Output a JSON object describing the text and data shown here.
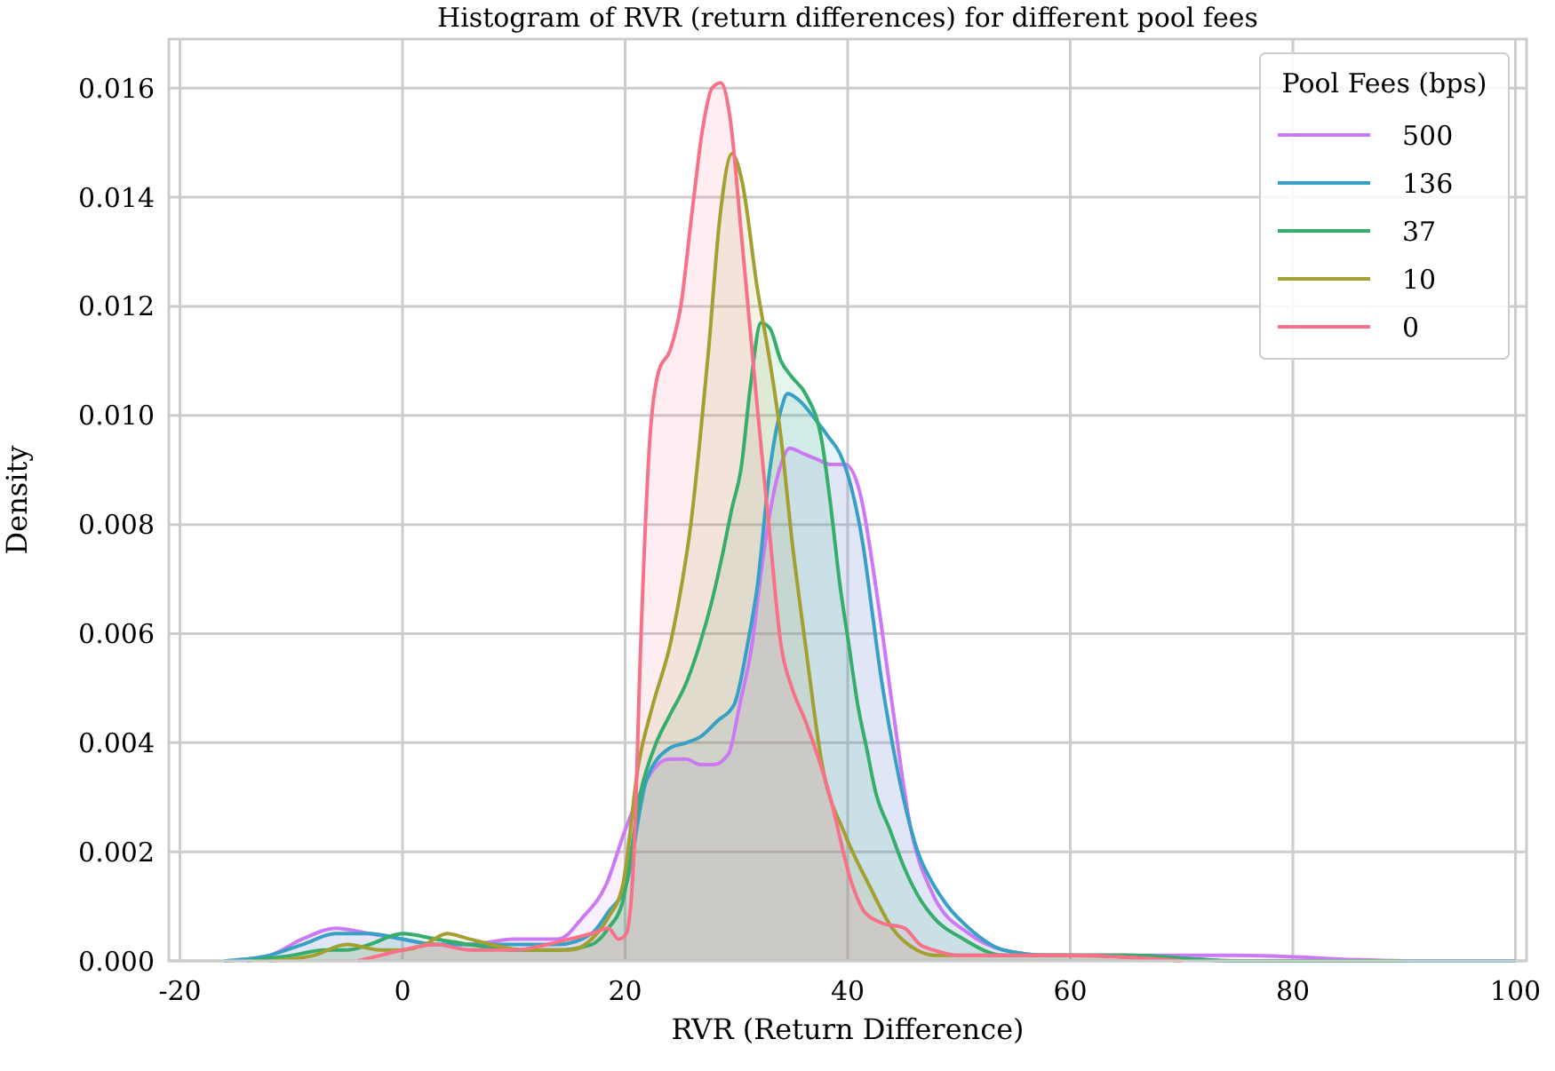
{
  "chart_data": {
    "type": "area",
    "title": "Histogram of RVR (return differences) for different pool fees",
    "xlabel": "RVR (Return Difference)",
    "ylabel": "Density",
    "legend_title": "Pool Fees (bps)",
    "legend": "top right",
    "grid": true,
    "xlim": [
      -21,
      101
    ],
    "ylim": [
      0,
      0.0169
    ],
    "xticks": [
      -20,
      0,
      20,
      40,
      60,
      80,
      100
    ],
    "yticks": [
      {
        "value": 0,
        "label": "0.000"
      },
      {
        "value": 0.002,
        "label": "0.002"
      },
      {
        "value": 0.004,
        "label": "0.004"
      },
      {
        "value": 0.006,
        "label": "0.006"
      },
      {
        "value": 0.008,
        "label": "0.008"
      },
      {
        "value": 0.01,
        "label": "0.010"
      },
      {
        "value": 0.012,
        "label": "0.012"
      },
      {
        "value": 0.014,
        "label": "0.014"
      },
      {
        "value": 0.016,
        "label": "0.016"
      }
    ],
    "series": [
      {
        "name": "500",
        "color": "#cc79f4",
        "x": [
          -16,
          -12,
          -9,
          -6,
          -3,
          0,
          3,
          6,
          10,
          14,
          16.2,
          18.3,
          20,
          21.4,
          22.5,
          24,
          25.5,
          26.7,
          28,
          29.3,
          30.3,
          31.4,
          32.2,
          33,
          34,
          34.8,
          36,
          37.2,
          38.5,
          39.8,
          41.2,
          42.5,
          44,
          45.6,
          47.7,
          50.9,
          54,
          58,
          65,
          75,
          90,
          100
        ],
        "values": [
          0,
          0.0001,
          0.0004,
          0.0006,
          0.0005,
          0.0004,
          0.0003,
          0.0003,
          0.0004,
          0.0004,
          0.0008,
          0.0014,
          0.0024,
          0.0031,
          0.0035,
          0.0037,
          0.0037,
          0.0036,
          0.0036,
          0.0038,
          0.0047,
          0.0058,
          0.0071,
          0.0082,
          0.0091,
          0.0094,
          0.0093,
          0.0092,
          0.0091,
          0.0091,
          0.0085,
          0.0069,
          0.0047,
          0.0025,
          0.0012,
          0.0005,
          0.0002,
          0.0001,
          0.0001,
          0.0001,
          0,
          0
        ]
      },
      {
        "name": "136",
        "color": "#37a1c5",
        "x": [
          -16,
          -12,
          -9,
          -6,
          -3,
          0,
          3,
          6,
          10,
          14,
          17,
          18.5,
          20.1,
          21.9,
          24,
          25.5,
          26.7,
          28.3,
          29.8,
          31,
          31.9,
          33,
          34,
          34.6,
          35.5,
          37.2,
          38.3,
          39.3,
          40.3,
          41.4,
          42.2,
          43,
          44,
          45.1,
          46.3,
          47.7,
          49,
          50.9,
          54,
          58,
          65,
          75,
          90,
          100
        ],
        "values": [
          0,
          0.0001,
          0.0003,
          0.0005,
          0.0005,
          0.0004,
          0.0003,
          0.0003,
          0.0003,
          0.0003,
          0.0005,
          0.0009,
          0.0014,
          0.0033,
          0.0039,
          0.004,
          0.0041,
          0.0044,
          0.0047,
          0.0058,
          0.0069,
          0.009,
          0.0101,
          0.0104,
          0.0103,
          0.0099,
          0.0096,
          0.0093,
          0.0087,
          0.0076,
          0.0064,
          0.0052,
          0.004,
          0.0029,
          0.002,
          0.0014,
          0.001,
          0.0006,
          0.0002,
          0.0001,
          0.0001,
          0,
          0,
          0
        ]
      },
      {
        "name": "37",
        "color": "#35ad6b",
        "x": [
          -14,
          -10,
          -7,
          -5,
          -3,
          0,
          3,
          6,
          10,
          14,
          17,
          18.5,
          19.8,
          21.4,
          22.8,
          24,
          25.5,
          26.7,
          27.8,
          28.8,
          29.6,
          30.4,
          31.3,
          32.2,
          33,
          34,
          35,
          36.2,
          37.7,
          38.5,
          39.3,
          40.1,
          40.9,
          41.7,
          42.5,
          43.8,
          45.1,
          46.3,
          47.7,
          50.4,
          54,
          57,
          60,
          65,
          75,
          90
        ],
        "values": [
          0,
          0.0001,
          0.0002,
          0.0002,
          0.0003,
          0.0005,
          0.0004,
          0.0003,
          0.0002,
          0.0002,
          0.0003,
          0.0006,
          0.0011,
          0.0031,
          0.004,
          0.0045,
          0.0051,
          0.0058,
          0.0066,
          0.0075,
          0.0083,
          0.009,
          0.0106,
          0.0117,
          0.0116,
          0.011,
          0.0107,
          0.0104,
          0.0095,
          0.0083,
          0.0069,
          0.0058,
          0.0047,
          0.0039,
          0.0031,
          0.0024,
          0.0017,
          0.0012,
          0.0008,
          0.0004,
          0.0001,
          0.0001,
          0.0001,
          0.0001,
          0,
          0
        ]
      },
      {
        "name": "10",
        "color": "#a39f31",
        "x": [
          -12,
          -8,
          -5,
          -2,
          0,
          2,
          4,
          6,
          8,
          11,
          15,
          17,
          18.5,
          19.8,
          21.2,
          22.5,
          24.05,
          25,
          25.9,
          26.7,
          27.5,
          28.5,
          29.6,
          30.5,
          31.9,
          33,
          34,
          35,
          36.2,
          37.7,
          39.8,
          41.9,
          44,
          46.2,
          48,
          52,
          55,
          60,
          70
        ],
        "values": [
          0,
          0.0001,
          0.0003,
          0.0002,
          0.0002,
          0.0003,
          0.0005,
          0.0004,
          0.0003,
          0.0002,
          0.0002,
          0.0004,
          0.0008,
          0.0014,
          0.0036,
          0.0047,
          0.0058,
          0.0068,
          0.008,
          0.0095,
          0.0112,
          0.0136,
          0.0148,
          0.0143,
          0.0123,
          0.011,
          0.0096,
          0.0077,
          0.0058,
          0.0036,
          0.0023,
          0.0014,
          0.0006,
          0.0002,
          0.0001,
          0.0001,
          0.0001,
          0.0001,
          0
        ]
      },
      {
        "name": "0",
        "color": "#f77189",
        "x": [
          -4,
          -2,
          0,
          3,
          6,
          10,
          13,
          15,
          17,
          18.5,
          19.4,
          20.1,
          20.8,
          21.4,
          22.2,
          23,
          24.05,
          25,
          26,
          27,
          27.8,
          28.6,
          29.4,
          30.5,
          31.9,
          33,
          34,
          35,
          36.2,
          38.3,
          40.4,
          41.5,
          43,
          45.1,
          46.5,
          47.7,
          50,
          55,
          60,
          70
        ],
        "values": [
          0,
          0.0001,
          0.0002,
          0.0003,
          0.0002,
          0.0002,
          0.0003,
          0.0004,
          0.0005,
          0.0006,
          0.0004,
          0.0005,
          0.002,
          0.0058,
          0.0095,
          0.0108,
          0.0112,
          0.012,
          0.0137,
          0.0153,
          0.016,
          0.0161,
          0.0155,
          0.0132,
          0.0101,
          0.0078,
          0.0058,
          0.005,
          0.0044,
          0.0031,
          0.0014,
          0.0009,
          0.0007,
          0.0006,
          0.0003,
          0.0002,
          0.0001,
          0.0001,
          0.0001,
          0
        ]
      }
    ]
  }
}
